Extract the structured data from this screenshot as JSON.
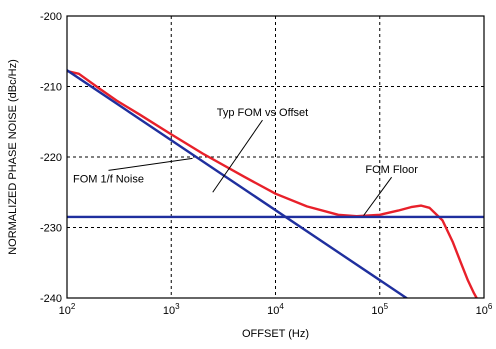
{
  "chart_data": {
    "type": "line",
    "title": "",
    "xlabel": "OFFSET (Hz)",
    "ylabel": "NORMALIZED PHASE NOISE (dBc/Hz)",
    "x_scale": "log",
    "xlim": [
      100,
      1000000
    ],
    "ylim": [
      -240,
      -200
    ],
    "grid": true,
    "x_ticks": [
      {
        "base": "10",
        "exp": "2"
      },
      {
        "base": "10",
        "exp": "3"
      },
      {
        "base": "10",
        "exp": "4"
      },
      {
        "base": "10",
        "exp": "5"
      },
      {
        "base": "10",
        "exp": "6"
      }
    ],
    "y_ticks": [
      "-200",
      "-210",
      "-220",
      "-230",
      "-240"
    ],
    "series": [
      {
        "color": "#e8202a",
        "x": [
          100,
          130,
          200,
          300,
          500,
          1000,
          2000,
          5000,
          10000,
          20000,
          40000,
          60000,
          100000,
          150000,
          200000,
          250000,
          300000,
          400000,
          500000,
          600000,
          700000,
          800000,
          850000
        ],
        "y": [
          -207.8,
          -208.2,
          -210.2,
          -212.0,
          -214.0,
          -216.8,
          -219.5,
          -222.8,
          -225.2,
          -227.0,
          -228.2,
          -228.4,
          -228.2,
          -227.6,
          -227.1,
          -226.9,
          -227.2,
          -229.0,
          -232.0,
          -235.0,
          -237.5,
          -239.3,
          -240.0
        ]
      },
      {
        "color": "#1f2f9e",
        "x": [
          100,
          180000
        ],
        "y": [
          -207.7,
          -240
        ]
      },
      {
        "color": "#1f2f9e",
        "x": [
          100,
          1000000
        ],
        "y": [
          -228.5,
          -228.5
        ]
      }
    ],
    "annotations": [
      {
        "text": "Typ FOM vs Offset",
        "x": 7500,
        "y": -214.2,
        "line_to": [
          2500,
          -225.0
        ]
      },
      {
        "text": "FOM 1/f Noise",
        "x": 250,
        "y": -223.6,
        "line_to": [
          1600,
          -220.2
        ]
      },
      {
        "text": "FOM Floor",
        "x": 130000,
        "y": -222.3,
        "line_to": [
          70000,
          -228.3
        ]
      }
    ]
  }
}
